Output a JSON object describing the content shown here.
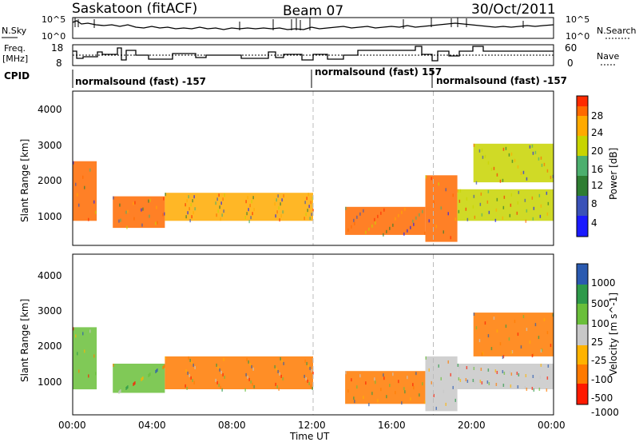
{
  "header": {
    "station": "Saskatoon (fitACF)",
    "beam": "Beam 07",
    "date": "30/Oct/2011"
  },
  "noise_panel": {
    "left_label": "N.Sky",
    "right_label": "N.Search",
    "left_ticks": [
      "10^5",
      "10^0"
    ],
    "right_ticks": [
      "10^5",
      "10^0"
    ]
  },
  "freq_panel": {
    "left_label_line1": "Freq.",
    "left_label_line2": "[MHz]",
    "right_label": "Nave",
    "left_ticks": [
      "18",
      "8"
    ],
    "right_ticks": [
      "60",
      "0"
    ]
  },
  "cpid_panel": {
    "label": "CPID",
    "segments": [
      {
        "text": "normalsound (fast) -157",
        "start_hour": 0.0
      },
      {
        "text": "normalsound (fast) 157",
        "start_hour": 12.0
      },
      {
        "text": "normalsound (fast) -157",
        "start_hour": 18.0
      }
    ]
  },
  "time_axis": {
    "label": "Time UT",
    "ticks": [
      "00:00",
      "04:00",
      "08:00",
      "12:00",
      "16:00",
      "20:00",
      "00:00"
    ]
  },
  "panels": {
    "power": {
      "ylabel": "Slant Range [km]",
      "yticks": [
        "1000",
        "2000",
        "3000",
        "4000"
      ],
      "colorbar_label": "Power [dB]",
      "colorbar_ticks": [
        "4",
        "8",
        "12",
        "16",
        "20",
        "24",
        "28"
      ]
    },
    "velocity": {
      "ylabel": "Slant Range [km]",
      "yticks": [
        "1000",
        "2000",
        "3000",
        "4000"
      ],
      "colorbar_label": "Velocity [m s^-1]",
      "colorbar_ticks": [
        "1000",
        "500",
        "100",
        "25",
        "-25",
        "-100",
        "-500",
        "-1000"
      ]
    }
  },
  "chart_data": [
    {
      "type": "heatmap",
      "title": "Saskatoon (fitACF)  Beam 07  30/Oct/2011",
      "xlabel": "Time UT",
      "ylabel": "Slant Range [km]",
      "xlim_hours": [
        0,
        24
      ],
      "ylim_km": [
        200,
        4600
      ],
      "colorbar": {
        "label": "Power [dB]",
        "levels": [
          0,
          4,
          8,
          12,
          16,
          20,
          24,
          28,
          32
        ],
        "colors": [
          "#1a1aff",
          "#3a52b8",
          "#2e7d32",
          "#4caf6e",
          "#c8d400",
          "#ffaa00",
          "#ff6a00",
          "#ff2b00"
        ]
      },
      "regions": [
        {
          "t": [
            0.0,
            1.2
          ],
          "r": [
            900,
            2600
          ],
          "level": 26
        },
        {
          "t": [
            2.0,
            4.6
          ],
          "r": [
            700,
            1600
          ],
          "level": 24
        },
        {
          "t": [
            4.6,
            12.0
          ],
          "r": [
            900,
            1700
          ],
          "level": 22
        },
        {
          "t": [
            13.6,
            17.6
          ],
          "r": [
            500,
            1300
          ],
          "level": 24
        },
        {
          "t": [
            17.6,
            19.2
          ],
          "r": [
            300,
            2200
          ],
          "level": 27
        },
        {
          "t": [
            19.2,
            24.0
          ],
          "r": [
            900,
            1800
          ],
          "level": 18
        },
        {
          "t": [
            20.0,
            24.0
          ],
          "r": [
            2000,
            3100
          ],
          "level": 16
        }
      ],
      "vertical_markers_hours": [
        12,
        18
      ]
    },
    {
      "type": "heatmap",
      "title": "",
      "xlabel": "Time UT",
      "ylabel": "Slant Range [km]",
      "xlim_hours": [
        0,
        24
      ],
      "ylim_km": [
        200,
        4600
      ],
      "colorbar": {
        "label": "Velocity [m s^-1]",
        "levels": [
          -1000,
          -500,
          -100,
          -25,
          25,
          100,
          500,
          1000
        ],
        "colors": [
          "#ff1a00",
          "#ff7a00",
          "#ffb300",
          "#c8c8c8",
          "#6abf3a",
          "#2e9a4a",
          "#2a5ab0"
        ]
      },
      "regions": [
        {
          "t": [
            0.0,
            1.2
          ],
          "r": [
            900,
            2600
          ],
          "level": 60
        },
        {
          "t": [
            2.0,
            4.6
          ],
          "r": [
            800,
            1600
          ],
          "level": 80
        },
        {
          "t": [
            4.6,
            12.0
          ],
          "r": [
            900,
            1800
          ],
          "level": -150
        },
        {
          "t": [
            13.6,
            17.6
          ],
          "r": [
            500,
            1400
          ],
          "level": -200
        },
        {
          "t": [
            17.6,
            19.2
          ],
          "r": [
            300,
            1800
          ],
          "level": 0
        },
        {
          "t": [
            19.2,
            24.0
          ],
          "r": [
            900,
            1600
          ],
          "level": 0
        },
        {
          "t": [
            20.0,
            24.0
          ],
          "r": [
            1800,
            3000
          ],
          "level": -300
        }
      ],
      "vertical_markers_hours": [
        12,
        18
      ]
    }
  ]
}
